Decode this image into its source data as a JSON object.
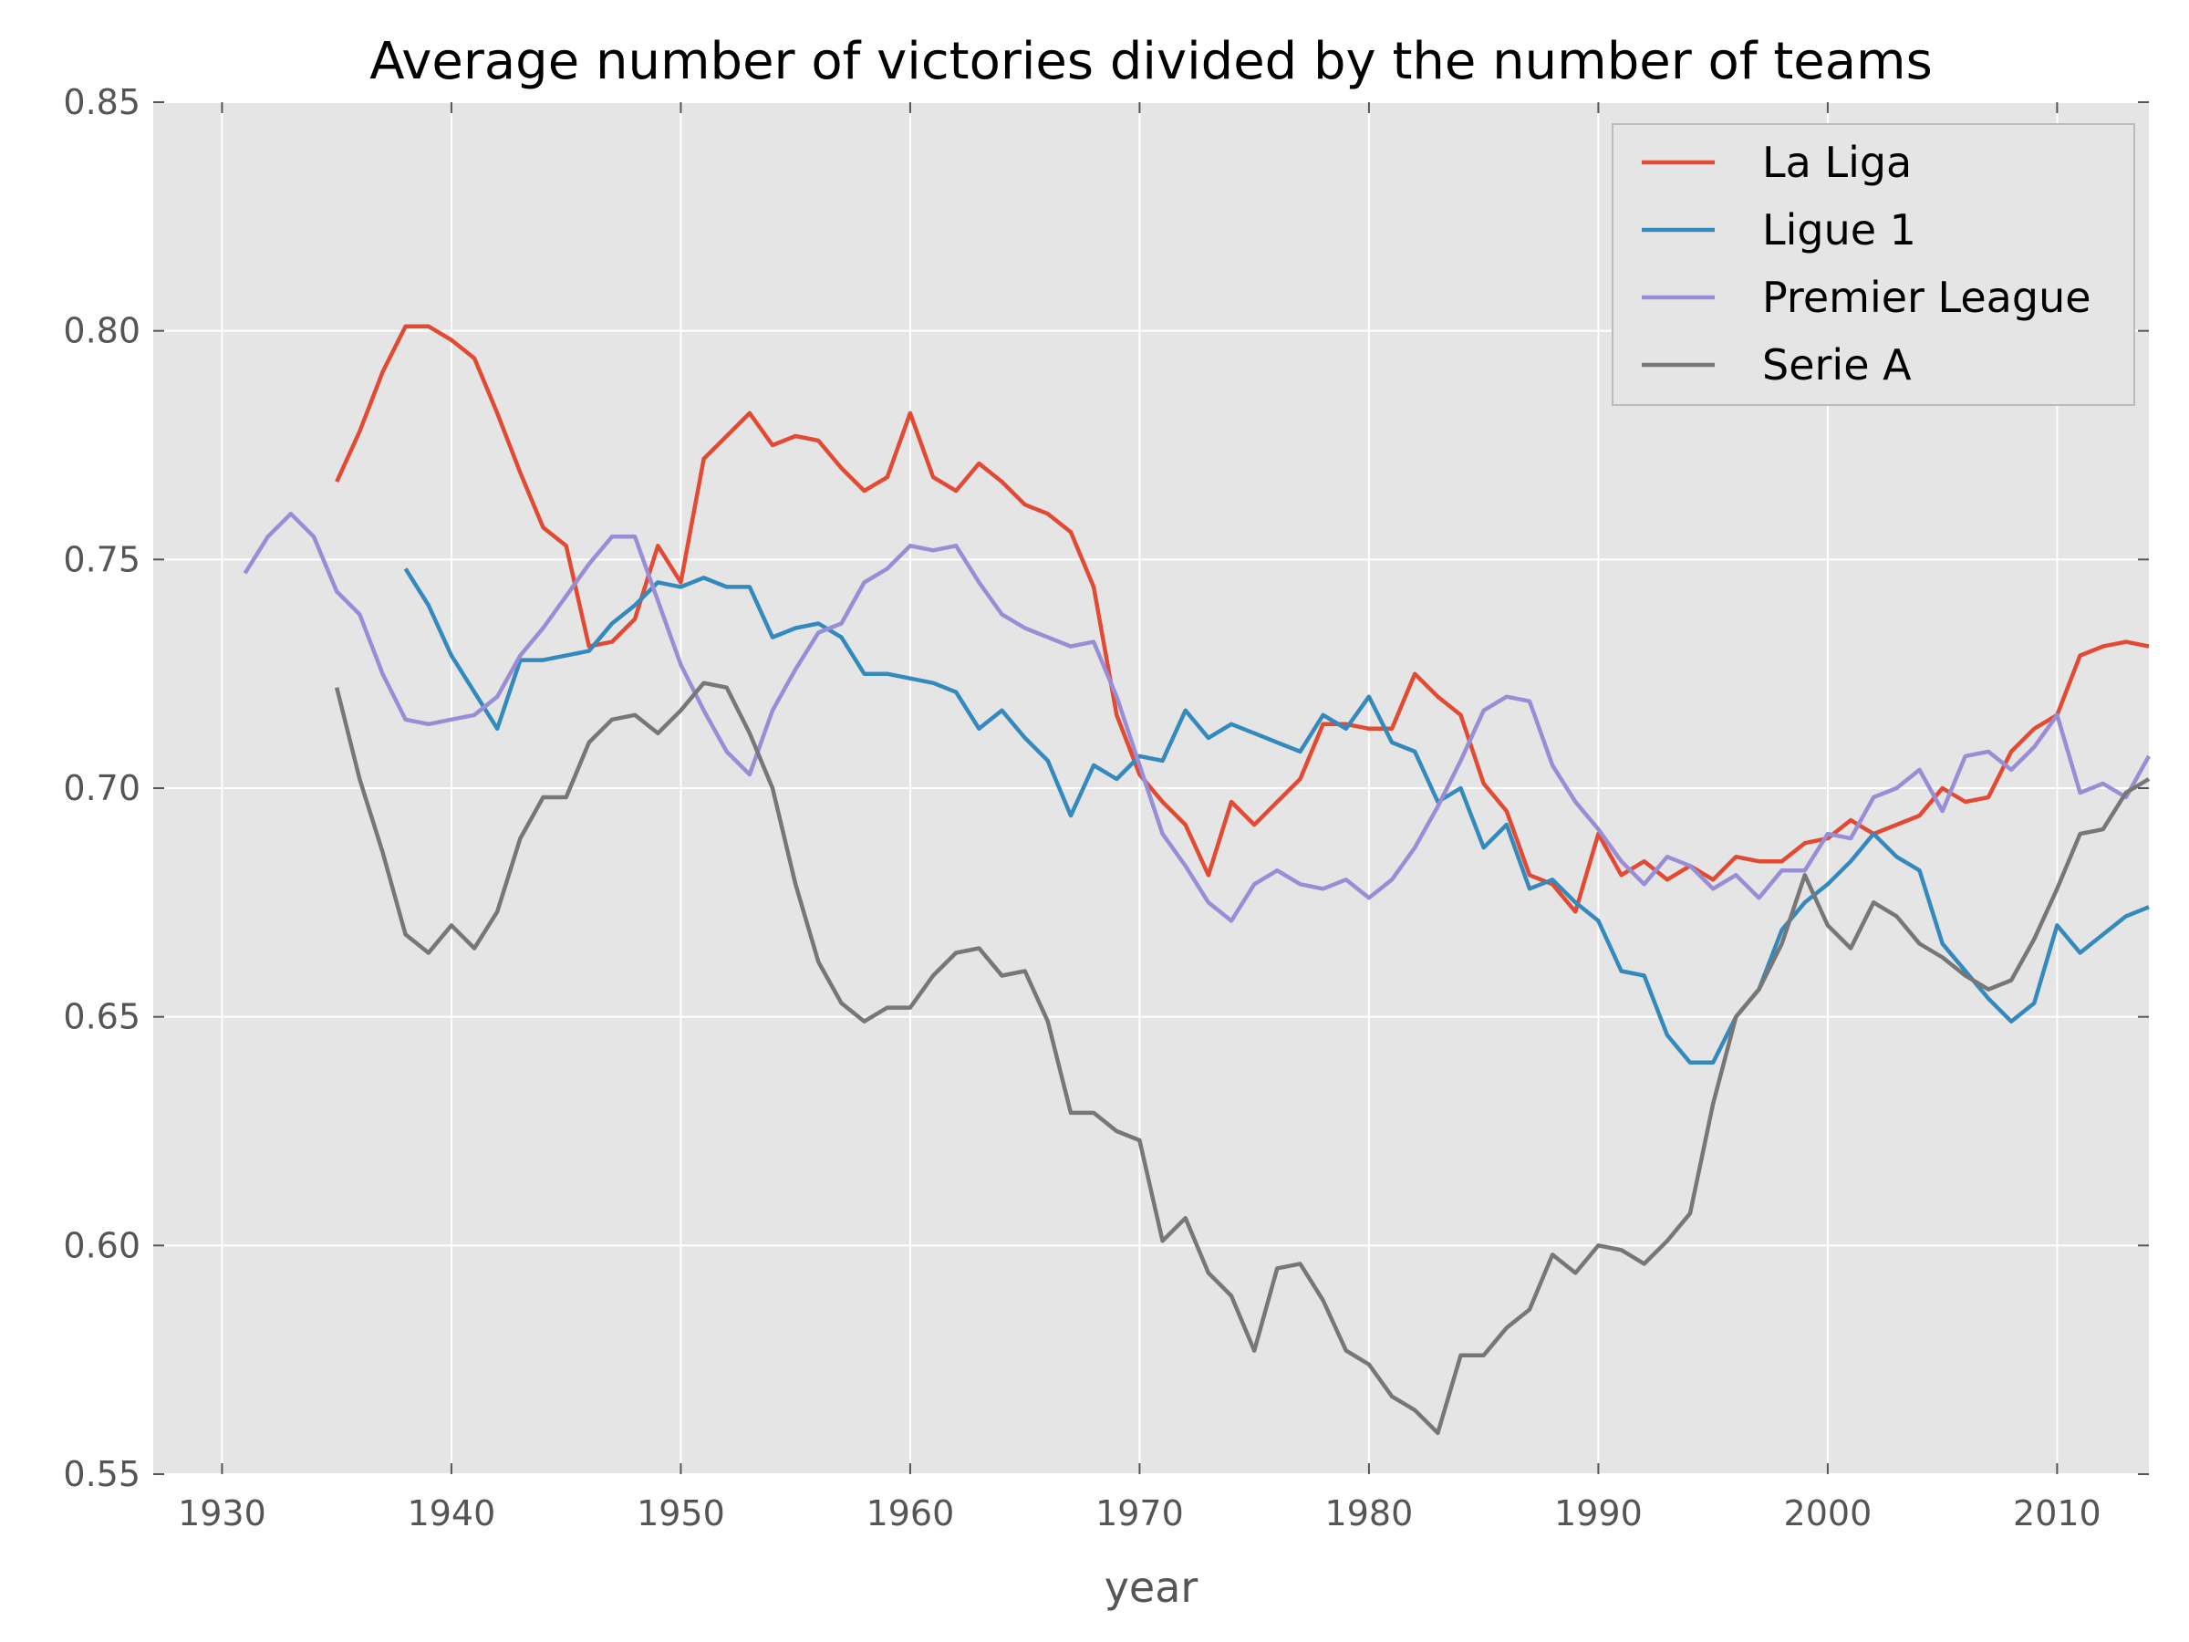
{
  "chart_data": {
    "type": "line",
    "title": "Average number of victories divided by the number of teams",
    "xlabel": "year",
    "ylabel": "",
    "xlim": [
      1927,
      2014
    ],
    "ylim": [
      0.55,
      0.85
    ],
    "x_ticks": [
      1930,
      1940,
      1950,
      1960,
      1970,
      1980,
      1990,
      2000,
      2010
    ],
    "x_tick_labels": [
      "1930",
      "1940",
      "1950",
      "1960",
      "1970",
      "1980",
      "1990",
      "2000",
      "2010"
    ],
    "y_ticks": [
      0.55,
      0.6,
      0.65,
      0.7,
      0.75,
      0.8,
      0.85
    ],
    "y_tick_labels": [
      "0.55",
      "0.60",
      "0.65",
      "0.70",
      "0.75",
      "0.80",
      "0.85"
    ],
    "grid": true,
    "legend_position": "top-right",
    "series": [
      {
        "name": "La Liga",
        "color": "#E24A33",
        "x_start": 1935,
        "values": [
          0.767,
          0.778,
          0.791,
          0.801,
          0.801,
          0.798,
          0.794,
          0.782,
          0.769,
          0.757,
          0.753,
          0.731,
          0.732,
          0.737,
          0.753,
          0.745,
          0.772,
          0.777,
          0.782,
          0.775,
          0.777,
          0.776,
          0.77,
          0.765,
          0.768,
          0.782,
          0.768,
          0.765,
          0.771,
          0.767,
          0.762,
          0.76,
          0.756,
          0.744,
          0.716,
          0.703,
          0.697,
          0.692,
          0.681,
          0.697,
          0.692,
          0.697,
          0.702,
          0.714,
          0.714,
          0.713,
          0.713,
          0.725,
          0.72,
          0.716,
          0.701,
          0.695,
          0.681,
          0.679,
          0.673,
          0.69,
          0.681,
          0.684,
          0.68,
          0.683,
          0.68,
          0.685,
          0.684,
          0.684,
          0.688,
          0.689,
          0.693,
          0.69,
          0.692,
          0.694,
          0.7,
          0.697,
          0.698,
          0.708,
          0.713,
          0.716,
          0.729,
          0.731,
          0.732,
          0.731
        ]
      },
      {
        "name": "Ligue 1",
        "color": "#348ABD",
        "x_start": 1938,
        "values": [
          0.748,
          0.74,
          0.729,
          0.721,
          0.713,
          0.728,
          0.728,
          0.729,
          0.73,
          0.736,
          0.74,
          0.745,
          0.744,
          0.746,
          0.744,
          0.744,
          0.733,
          0.735,
          0.736,
          0.733,
          0.725,
          0.725,
          0.724,
          0.723,
          0.721,
          0.713,
          0.717,
          0.711,
          0.706,
          0.694,
          0.705,
          0.702,
          0.707,
          0.706,
          0.717,
          0.711,
          0.714,
          0.712,
          0.71,
          0.708,
          0.716,
          0.713,
          0.72,
          0.71,
          0.708,
          0.697,
          0.7,
          0.687,
          0.692,
          0.678,
          0.68,
          0.675,
          0.671,
          0.66,
          0.659,
          0.646,
          0.64,
          0.64,
          0.65,
          0.656,
          0.669,
          0.675,
          0.679,
          0.684,
          0.69,
          0.685,
          0.682,
          0.666,
          0.66,
          0.654,
          0.649,
          0.653,
          0.67,
          0.664,
          0.668,
          0.672,
          0.674
        ]
      },
      {
        "name": "Premier League",
        "color": "#988ED5",
        "x_start": 1931,
        "values": [
          0.747,
          0.755,
          0.76,
          0.755,
          0.743,
          0.738,
          0.725,
          0.715,
          0.714,
          0.715,
          0.716,
          0.72,
          0.729,
          0.735,
          0.742,
          0.749,
          0.755,
          0.755,
          0.741,
          0.727,
          0.717,
          0.708,
          0.703,
          0.717,
          0.726,
          0.734,
          0.736,
          0.745,
          0.748,
          0.753,
          0.752,
          0.753,
          0.745,
          0.738,
          0.735,
          0.733,
          0.731,
          0.732,
          0.72,
          0.705,
          0.69,
          0.683,
          0.675,
          0.671,
          0.679,
          0.682,
          0.679,
          0.678,
          0.68,
          0.676,
          0.68,
          0.687,
          0.696,
          0.706,
          0.717,
          0.72,
          0.719,
          0.705,
          0.697,
          0.691,
          0.684,
          0.679,
          0.685,
          0.683,
          0.678,
          0.681,
          0.676,
          0.682,
          0.682,
          0.69,
          0.689,
          0.698,
          0.7,
          0.704,
          0.695,
          0.707,
          0.708,
          0.704,
          0.709,
          0.716,
          0.699,
          0.701,
          0.698,
          0.707
        ]
      },
      {
        "name": "Serie A",
        "color": "#777777",
        "x_start": 1935,
        "values": [
          0.722,
          0.702,
          0.686,
          0.668,
          0.664,
          0.67,
          0.665,
          0.673,
          0.689,
          0.698,
          0.698,
          0.71,
          0.715,
          0.716,
          0.712,
          0.717,
          0.723,
          0.722,
          0.712,
          0.7,
          0.679,
          0.662,
          0.653,
          0.649,
          0.652,
          0.652,
          0.659,
          0.664,
          0.665,
          0.659,
          0.66,
          0.649,
          0.629,
          0.629,
          0.625,
          0.623,
          0.601,
          0.606,
          0.594,
          0.589,
          0.577,
          0.595,
          0.596,
          0.588,
          0.577,
          0.574,
          0.567,
          0.564,
          0.559,
          0.576,
          0.576,
          0.582,
          0.586,
          0.598,
          0.594,
          0.6,
          0.599,
          0.596,
          0.601,
          0.607,
          0.631,
          0.65,
          0.656,
          0.666,
          0.681,
          0.67,
          0.665,
          0.675,
          0.672,
          0.666,
          0.663,
          0.659,
          0.656,
          0.658,
          0.667,
          0.678,
          0.69,
          0.691,
          0.699,
          0.702
        ]
      }
    ]
  }
}
